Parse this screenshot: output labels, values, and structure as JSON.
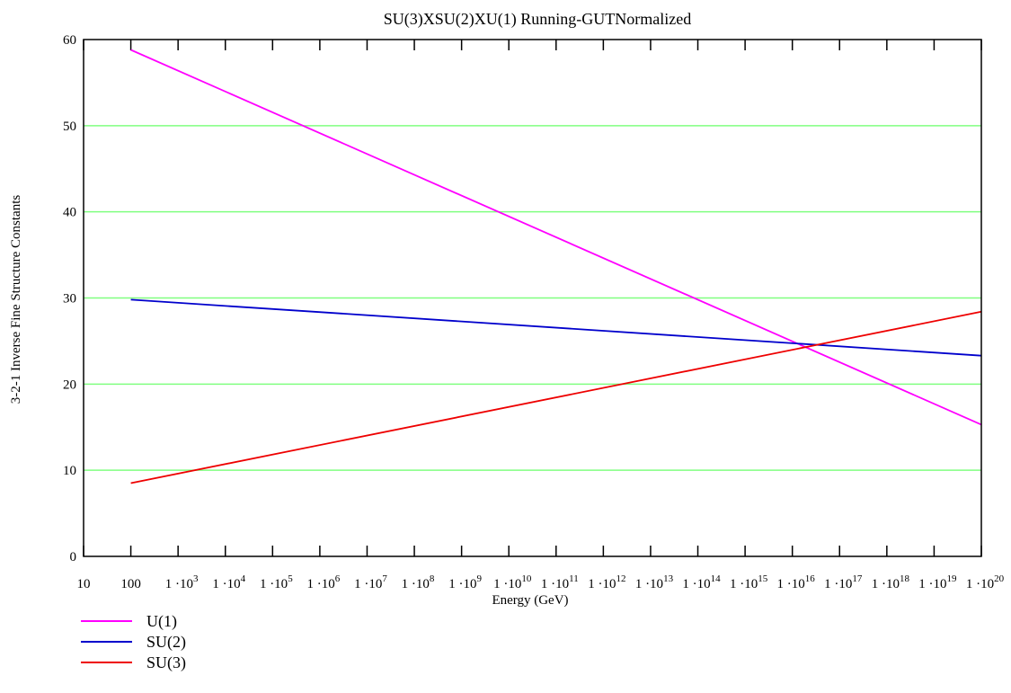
{
  "chart_data": {
    "type": "line",
    "title": "SU(3)XSU(2)XU(1) Running-GUTNormalized",
    "xlabel": "Energy (GeV)",
    "ylabel": "3-2-1 Inverse Fine Structure Constants",
    "x_scale": "log",
    "xlim": [
      10,
      1e+20
    ],
    "ylim": [
      0,
      60
    ],
    "grid": {
      "horizontal": true,
      "vertical": false,
      "color": "#80ff80"
    },
    "y_ticks": [
      0,
      10,
      20,
      30,
      40,
      50,
      60
    ],
    "y_tick_labels": [
      "0",
      "10",
      "20",
      "30",
      "40",
      "50",
      "60"
    ],
    "x_ticks": [
      {
        "value": 10,
        "label": "10",
        "exp": ""
      },
      {
        "value": 100,
        "label": "100",
        "exp": ""
      },
      {
        "value": 1000.0,
        "label": "1 ·10",
        "exp": "3"
      },
      {
        "value": 10000.0,
        "label": "1 ·10",
        "exp": "4"
      },
      {
        "value": 100000.0,
        "label": "1 ·10",
        "exp": "5"
      },
      {
        "value": 1000000.0,
        "label": "1 ·10",
        "exp": "6"
      },
      {
        "value": 10000000.0,
        "label": "1 ·10",
        "exp": "7"
      },
      {
        "value": 100000000.0,
        "label": "1 ·10",
        "exp": "8"
      },
      {
        "value": 1000000000.0,
        "label": "1 ·10",
        "exp": "9"
      },
      {
        "value": 10000000000.0,
        "label": "1 ·10",
        "exp": "10"
      },
      {
        "value": 100000000000.0,
        "label": "1 ·10",
        "exp": "11"
      },
      {
        "value": 1000000000000.0,
        "label": "1 ·10",
        "exp": "12"
      },
      {
        "value": 10000000000000.0,
        "label": "1 ·10",
        "exp": "13"
      },
      {
        "value": 100000000000000.0,
        "label": "1 ·10",
        "exp": "14"
      },
      {
        "value": 1000000000000000.0,
        "label": "1 ·10",
        "exp": "15"
      },
      {
        "value": 1e+16,
        "label": "1 ·10",
        "exp": "16"
      },
      {
        "value": 1e+17,
        "label": "1 ·10",
        "exp": "17"
      },
      {
        "value": 1e+18,
        "label": "1 ·10",
        "exp": "18"
      },
      {
        "value": 1e+19,
        "label": "1 ·10",
        "exp": "19"
      },
      {
        "value": 1e+20,
        "label": "1 ·10",
        "exp": "20"
      }
    ],
    "series": [
      {
        "name": "U(1)",
        "color": "#ff00ff",
        "x": [
          100,
          1e+20
        ],
        "y": [
          58.8,
          15.3
        ]
      },
      {
        "name": "SU(2)",
        "color": "#0000cc",
        "x": [
          100,
          1e+20
        ],
        "y": [
          29.8,
          23.3
        ]
      },
      {
        "name": "SU(3)",
        "color": "#ee0000",
        "x": [
          100,
          1e+20
        ],
        "y": [
          8.5,
          28.4
        ]
      }
    ],
    "legend": "bottom-left"
  }
}
